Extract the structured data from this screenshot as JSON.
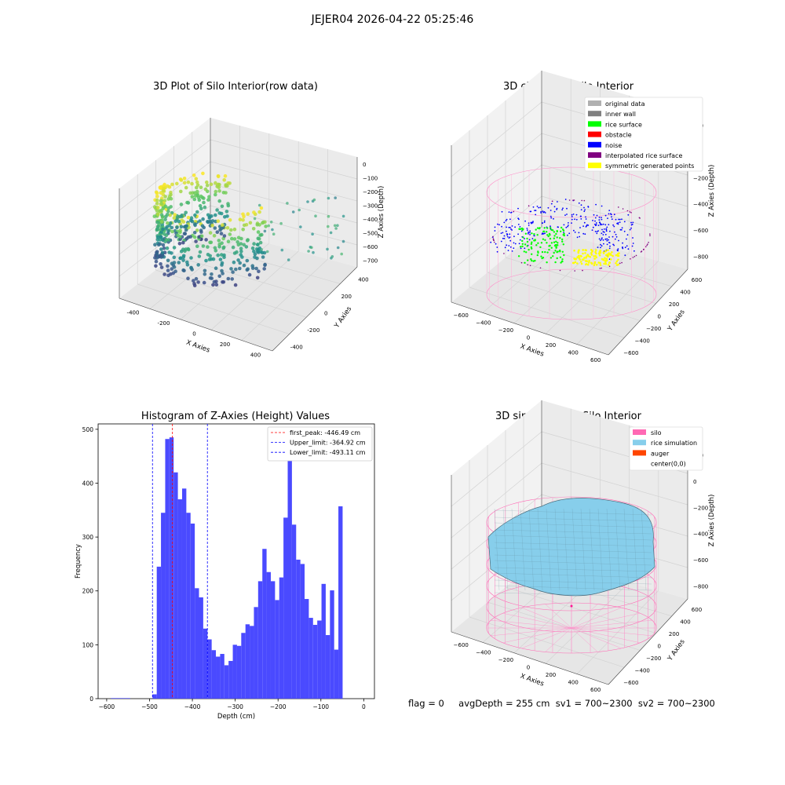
{
  "suptitle": "JEJER04 2026-04-22 05:25:46",
  "colors": {
    "original_data": "#b0b0b0",
    "inner_wall": "#808080",
    "rice_surface": "#00ff00",
    "obstacle": "#ff0000",
    "noise": "#0000ff",
    "interpolated_rice_surface": "#800080",
    "symmetric_generated_points": "#ffff00",
    "silo": "#ff69b4",
    "rice_simulation": "#87ceeb",
    "auger": "#ff4500",
    "hist_bar": "#4a4aff"
  },
  "panel1": {
    "title": "3D Plot of Silo Interior(row data)",
    "xlabel": "X Axies",
    "ylabel": "Y Axies",
    "zlabel": "Z Axies (Depth)",
    "xticks": [
      "-400",
      "-200",
      "0",
      "200",
      "400"
    ],
    "yticks": [
      "-400",
      "-200",
      "0",
      "200",
      "400"
    ],
    "zticks": [
      "0",
      "−100",
      "−200",
      "−300",
      "−400",
      "−500",
      "−600",
      "−700"
    ]
  },
  "panel2": {
    "title": "3D classify of Silo Interior",
    "xlabel": "X Axies",
    "ylabel": "Y Axies",
    "zlabel": "Z Axies (Depth)",
    "xticks": [
      "−600",
      "−400",
      "−200",
      "0",
      "200",
      "400",
      "600"
    ],
    "yticks": [
      "−600",
      "−400",
      "−200",
      "0",
      "200",
      "400",
      "600"
    ],
    "zticks": [
      "200",
      "0",
      "−200",
      "−400",
      "−600",
      "−800"
    ],
    "legend": [
      "original data",
      "inner wall",
      "rice surface",
      "obstacle",
      "noise",
      "interpolated rice surface",
      "symmetric generated points"
    ]
  },
  "panel4": {
    "title": "3D simulation of Silo Interior",
    "xlabel": "X Axies",
    "ylabel": "Y Axies",
    "zlabel": "Z Axies (Depth)",
    "xticks": [
      "−600",
      "−400",
      "−200",
      "0",
      "200",
      "400",
      "600"
    ],
    "yticks": [
      "−600",
      "−400",
      "−200",
      "0",
      "200",
      "400",
      "600"
    ],
    "zticks": [
      "200",
      "0",
      "−200",
      "−400",
      "−600",
      "−800"
    ],
    "legend": [
      "silo",
      "rice simulation",
      "auger",
      "center(0,0)"
    ]
  },
  "chart_data": {
    "type": "bar",
    "title": "Histogram of Z-Axies (Height) Values",
    "xlabel": "Depth (cm)",
    "ylabel": "Frequency",
    "xlim": [
      -620,
      25
    ],
    "ylim": [
      0,
      510
    ],
    "xticks": [
      "−600",
      "−500",
      "−400",
      "−300",
      "−200",
      "−100",
      "0"
    ],
    "yticks": [
      "0",
      "100",
      "200",
      "300",
      "400",
      "500"
    ],
    "bin_edges_start": -493,
    "bin_width": 9.86,
    "values": [
      8,
      245,
      345,
      482,
      485,
      420,
      370,
      390,
      345,
      325,
      205,
      188,
      130,
      110,
      90,
      78,
      83,
      62,
      70,
      100,
      98,
      122,
      138,
      135,
      170,
      218,
      278,
      235,
      218,
      183,
      225,
      336,
      445,
      323,
      258,
      250,
      185,
      150,
      137,
      145,
      213,
      118,
      201,
      91,
      357
    ],
    "low_bins": [
      {
        "x0": -590,
        "x1": -545,
        "value": 1
      }
    ],
    "vlines": [
      {
        "label": "first_peak: -446.49 cm",
        "x": -446.49,
        "color": "#ff0000"
      },
      {
        "label": "Upper_limit: -364.92 cm",
        "x": -364.92,
        "color": "#0000ff"
      },
      {
        "label": "Lower_limit: -493.11 cm",
        "x": -493.11,
        "color": "#0000ff"
      }
    ],
    "legend_position": "top-right"
  },
  "footer": {
    "flag": "flag = 0",
    "stats": "avgDepth = 255 cm  sv1 = 700~2300  sv2 = 700~2300"
  }
}
